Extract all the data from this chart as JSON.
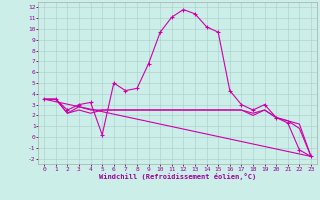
{
  "xlabel": "Windchill (Refroidissement éolien,°C)",
  "background_color": "#cceee8",
  "grid_color": "#aacccc",
  "line_color": "#cc00aa",
  "xlim": [
    -0.5,
    23.5
  ],
  "ylim": [
    -2.5,
    12.5
  ],
  "xticks": [
    0,
    1,
    2,
    3,
    4,
    5,
    6,
    7,
    8,
    9,
    10,
    11,
    12,
    13,
    14,
    15,
    16,
    17,
    18,
    19,
    20,
    21,
    22,
    23
  ],
  "yticks": [
    -2,
    -1,
    0,
    1,
    2,
    3,
    4,
    5,
    6,
    7,
    8,
    9,
    10,
    11,
    12
  ],
  "series1_x": [
    0,
    1,
    2,
    3,
    4,
    5,
    6,
    7,
    8,
    9,
    10,
    11,
    12,
    13,
    14,
    15,
    16,
    17,
    18,
    19,
    20,
    21,
    22,
    23
  ],
  "series1_y": [
    3.5,
    3.5,
    2.5,
    3.0,
    3.2,
    0.2,
    5.0,
    4.3,
    4.5,
    6.8,
    9.7,
    11.1,
    11.8,
    11.4,
    10.2,
    9.7,
    4.3,
    3.0,
    2.5,
    3.0,
    1.8,
    1.3,
    -1.2,
    -1.8
  ],
  "series2_x": [
    0,
    1,
    2,
    3,
    4,
    5,
    6,
    7,
    8,
    9,
    10,
    11,
    12,
    13,
    14,
    15,
    16,
    17,
    18,
    19,
    20,
    21,
    22,
    23
  ],
  "series2_y": [
    3.5,
    3.5,
    2.2,
    2.8,
    2.5,
    2.5,
    2.5,
    2.5,
    2.5,
    2.5,
    2.5,
    2.5,
    2.5,
    2.5,
    2.5,
    2.5,
    2.5,
    2.5,
    2.2,
    2.5,
    1.8,
    1.5,
    1.2,
    -1.8
  ],
  "series3_x": [
    0,
    1,
    2,
    3,
    4,
    5,
    6,
    7,
    8,
    9,
    10,
    11,
    12,
    13,
    14,
    15,
    16,
    17,
    18,
    19,
    20,
    21,
    22,
    23
  ],
  "series3_y": [
    3.5,
    3.5,
    2.2,
    2.5,
    2.2,
    2.5,
    2.5,
    2.5,
    2.5,
    2.5,
    2.5,
    2.5,
    2.5,
    2.5,
    2.5,
    2.5,
    2.5,
    2.5,
    2.0,
    2.5,
    1.8,
    1.5,
    0.8,
    -1.8
  ],
  "series4_x": [
    0,
    23
  ],
  "series4_y": [
    3.5,
    -1.8
  ]
}
